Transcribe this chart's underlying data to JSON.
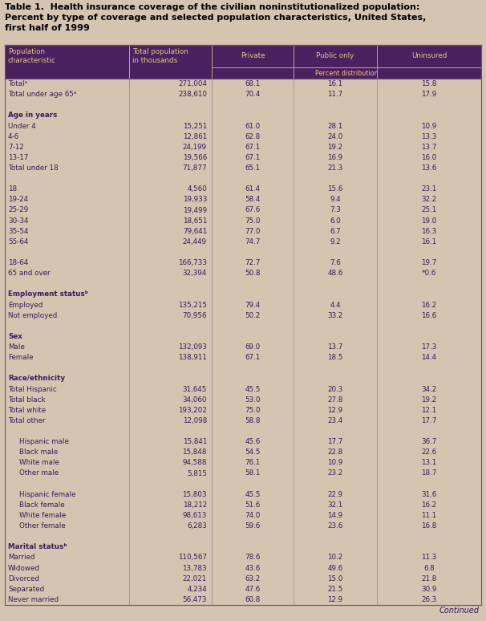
{
  "title_line1": "Table 1.  Health insurance coverage of the civilian noninstitutionalized population:",
  "title_line2": "Percent by type of coverage and selected population characteristics, United States,",
  "title_line3": "first half of 1999",
  "col_headers_row1": [
    "Population\ncharacteristic",
    "Total population\nin thousands",
    "Private",
    "Public only",
    "Uninsured"
  ],
  "percent_dist_label": "Percent distribution",
  "header_bg": "#4a2060",
  "header_text": "#e8c878",
  "body_bg": "#d4c4b0",
  "section_label_color": "#3d1a5c",
  "data_text_color": "#3d1a5c",
  "title_bg": "#e8ddd0",
  "page_bg": "#d4c4b0",
  "border_color": "#6a5080",
  "divider_color": "#a09080",
  "rows": [
    {
      "label": "Totalᵃ",
      "pop": "271,004",
      "private": "68.1",
      "public": "16.1",
      "uninsured": "15.8",
      "type": "data"
    },
    {
      "label": "Total under age 65ᵃ",
      "pop": "238,610",
      "private": "70.4",
      "public": "11.7",
      "uninsured": "17.9",
      "type": "data"
    },
    {
      "label": "",
      "pop": "",
      "private": "",
      "public": "",
      "uninsured": "",
      "type": "blank"
    },
    {
      "label": "Age in years",
      "pop": "",
      "private": "",
      "public": "",
      "uninsured": "",
      "type": "section"
    },
    {
      "label": "Under 4",
      "pop": "15,251",
      "private": "61.0",
      "public": "28.1",
      "uninsured": "10.9",
      "type": "data"
    },
    {
      "label": "4-6",
      "pop": "12,861",
      "private": "62.8",
      "public": "24.0",
      "uninsured": "13.3",
      "type": "data"
    },
    {
      "label": "7-12",
      "pop": "24,199",
      "private": "67.1",
      "public": "19.2",
      "uninsured": "13.7",
      "type": "data"
    },
    {
      "label": "13-17",
      "pop": "19,566",
      "private": "67.1",
      "public": "16.9",
      "uninsured": "16.0",
      "type": "data"
    },
    {
      "label": "Total under 18",
      "pop": "71,877",
      "private": "65.1",
      "public": "21.3",
      "uninsured": "13.6",
      "type": "data"
    },
    {
      "label": "",
      "pop": "",
      "private": "",
      "public": "",
      "uninsured": "",
      "type": "blank"
    },
    {
      "label": "18",
      "pop": "4,560",
      "private": "61.4",
      "public": "15.6",
      "uninsured": "23.1",
      "type": "data"
    },
    {
      "label": "19-24",
      "pop": "19,933",
      "private": "58.4",
      "public": "9.4",
      "uninsured": "32.2",
      "type": "data"
    },
    {
      "label": "25-29",
      "pop": "19,499",
      "private": "67.6",
      "public": "7.3",
      "uninsured": "25.1",
      "type": "data"
    },
    {
      "label": "30-34",
      "pop": "18,651",
      "private": "75.0",
      "public": "6.0",
      "uninsured": "19.0",
      "type": "data"
    },
    {
      "label": "35-54",
      "pop": "79,641",
      "private": "77.0",
      "public": "6.7",
      "uninsured": "16.3",
      "type": "data"
    },
    {
      "label": "55-64",
      "pop": "24,449",
      "private": "74.7",
      "public": "9.2",
      "uninsured": "16.1",
      "type": "data"
    },
    {
      "label": "",
      "pop": "",
      "private": "",
      "public": "",
      "uninsured": "",
      "type": "blank"
    },
    {
      "label": "18-64",
      "pop": "166,733",
      "private": "72.7",
      "public": "7.6",
      "uninsured": "19.7",
      "type": "data"
    },
    {
      "label": "65 and over",
      "pop": "32,394",
      "private": "50.8",
      "public": "48.6",
      "uninsured": "*0.6",
      "type": "data"
    },
    {
      "label": "",
      "pop": "",
      "private": "",
      "public": "",
      "uninsured": "",
      "type": "blank"
    },
    {
      "label": "Employment statusᵇ",
      "pop": "",
      "private": "",
      "public": "",
      "uninsured": "",
      "type": "section"
    },
    {
      "label": "Employed",
      "pop": "135,215",
      "private": "79.4",
      "public": "4.4",
      "uninsured": "16.2",
      "type": "data"
    },
    {
      "label": "Not employed",
      "pop": "70,956",
      "private": "50.2",
      "public": "33.2",
      "uninsured": "16.6",
      "type": "data"
    },
    {
      "label": "",
      "pop": "",
      "private": "",
      "public": "",
      "uninsured": "",
      "type": "blank"
    },
    {
      "label": "Sex",
      "pop": "",
      "private": "",
      "public": "",
      "uninsured": "",
      "type": "section"
    },
    {
      "label": "Male",
      "pop": "132,093",
      "private": "69.0",
      "public": "13.7",
      "uninsured": "17.3",
      "type": "data"
    },
    {
      "label": "Female",
      "pop": "138,911",
      "private": "67.1",
      "public": "18.5",
      "uninsured": "14.4",
      "type": "data"
    },
    {
      "label": "",
      "pop": "",
      "private": "",
      "public": "",
      "uninsured": "",
      "type": "blank"
    },
    {
      "label": "Race/ethnicity",
      "pop": "",
      "private": "",
      "public": "",
      "uninsured": "",
      "type": "section"
    },
    {
      "label": "Total Hispanic",
      "pop": "31,645",
      "private": "45.5",
      "public": "20.3",
      "uninsured": "34.2",
      "type": "data"
    },
    {
      "label": "Total black",
      "pop": "34,060",
      "private": "53.0",
      "public": "27.8",
      "uninsured": "19.2",
      "type": "data"
    },
    {
      "label": "Total white",
      "pop": "193,202",
      "private": "75.0",
      "public": "12.9",
      "uninsured": "12.1",
      "type": "data"
    },
    {
      "label": "Total other",
      "pop": "12,098",
      "private": "58.8",
      "public": "23.4",
      "uninsured": "17.7",
      "type": "data"
    },
    {
      "label": "",
      "pop": "",
      "private": "",
      "public": "",
      "uninsured": "",
      "type": "blank"
    },
    {
      "label": "Hispanic male",
      "pop": "15,841",
      "private": "45.6",
      "public": "17.7",
      "uninsured": "36.7",
      "type": "subdata"
    },
    {
      "label": "Black male",
      "pop": "15,848",
      "private": "54.5",
      "public": "22.8",
      "uninsured": "22.6",
      "type": "subdata"
    },
    {
      "label": "White male",
      "pop": "94,588",
      "private": "76.1",
      "public": "10.9",
      "uninsured": "13.1",
      "type": "subdata"
    },
    {
      "label": "Other male",
      "pop": "5,815",
      "private": "58.1",
      "public": "23.2",
      "uninsured": "18.7",
      "type": "subdata"
    },
    {
      "label": "",
      "pop": "",
      "private": "",
      "public": "",
      "uninsured": "",
      "type": "blank"
    },
    {
      "label": "Hispanic female",
      "pop": "15,803",
      "private": "45.5",
      "public": "22.9",
      "uninsured": "31.6",
      "type": "subdata"
    },
    {
      "label": "Black female",
      "pop": "18,212",
      "private": "51.6",
      "public": "32.1",
      "uninsured": "16.2",
      "type": "subdata"
    },
    {
      "label": "White female",
      "pop": "98,613",
      "private": "74.0",
      "public": "14.9",
      "uninsured": "11.1",
      "type": "subdata"
    },
    {
      "label": "Other female",
      "pop": "6,283",
      "private": "59.6",
      "public": "23.6",
      "uninsured": "16.8",
      "type": "subdata"
    },
    {
      "label": "",
      "pop": "",
      "private": "",
      "public": "",
      "uninsured": "",
      "type": "blank"
    },
    {
      "label": "Marital statusᵇ",
      "pop": "",
      "private": "",
      "public": "",
      "uninsured": "",
      "type": "section"
    },
    {
      "label": "Married",
      "pop": "110,567",
      "private": "78.6",
      "public": "10.2",
      "uninsured": "11.3",
      "type": "data"
    },
    {
      "label": "Widowed",
      "pop": "13,783",
      "private": "43.6",
      "public": "49.6",
      "uninsured": "6.8",
      "type": "data"
    },
    {
      "label": "Divorced",
      "pop": "22,021",
      "private": "63.2",
      "public": "15.0",
      "uninsured": "21.8",
      "type": "data"
    },
    {
      "label": "Separated",
      "pop": "4,234",
      "private": "47.6",
      "public": "21.5",
      "uninsured": "30.9",
      "type": "data"
    },
    {
      "label": "Never married",
      "pop": "56,473",
      "private": "60.8",
      "public": "12.9",
      "uninsured": "26.3",
      "type": "data"
    }
  ],
  "continued_text": "Continued"
}
